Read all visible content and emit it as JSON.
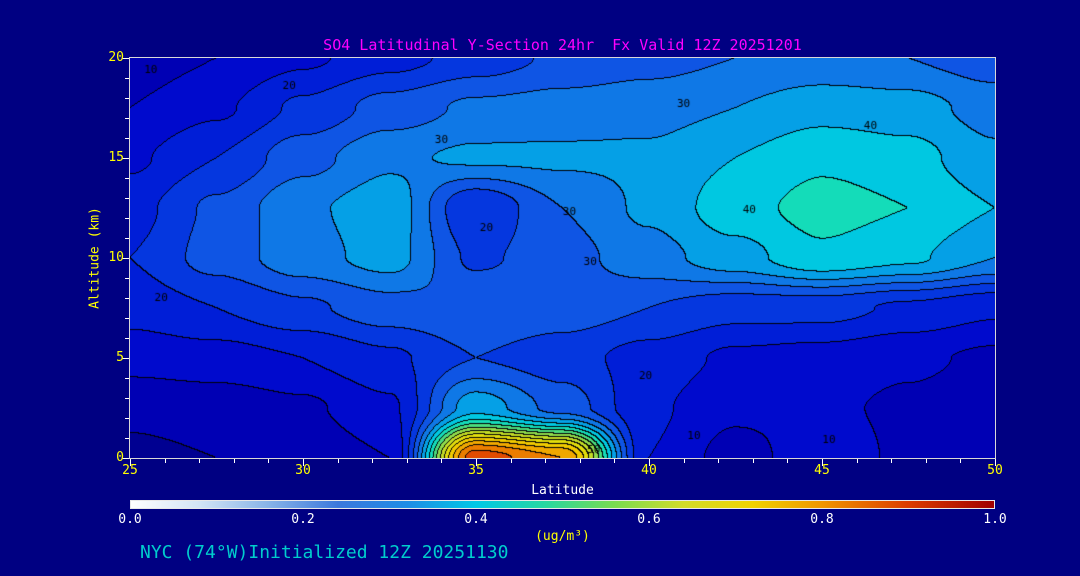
{
  "title": "SO4 Latitudinal Y-Section 24hr  Fx Valid 12Z 20251201",
  "footer": {
    "text": "NYC (74°W)Initialized 12Z 20251130"
  },
  "colors": {
    "background": "#000082",
    "title": "#ff00ff",
    "axis_tick_labels": "#ffff00",
    "axis_title": "#ffff00",
    "x_axis_title": "#ffffff",
    "colorbar_labels": "#ffffff",
    "units": "#ffff00",
    "footer": "#00cdcd",
    "frame": "#d8d8d8",
    "contour_line": "#000005"
  },
  "chart_data": {
    "type": "heatmap",
    "title": "SO4 Latitudinal Y-Section 24hr  Fx Valid 12Z 20251201",
    "xlabel": "Latitude",
    "ylabel": "Altitude (km)",
    "units": "(ug/m³)",
    "xlim": [
      25,
      50
    ],
    "ylim": [
      0,
      20
    ],
    "x_ticks": [
      25,
      30,
      35,
      40,
      45,
      50
    ],
    "y_ticks": [
      0,
      5,
      10,
      15,
      20
    ],
    "colorbar_ticks": [
      "0.0",
      "0.2",
      "0.4",
      "0.6",
      "0.8",
      "1.0"
    ],
    "colorbar_min": 0.0,
    "colorbar_max": 1.0,
    "contour_interval": 0.05,
    "grid_lats": [
      25,
      27.5,
      30,
      32.5,
      35,
      37.5,
      40,
      42.5,
      45,
      47.5,
      50
    ],
    "grid_alts": [
      0,
      2.5,
      5,
      7.5,
      10,
      12.5,
      15,
      17.5,
      20
    ],
    "values": [
      [
        0.04,
        0.05,
        0.06,
        0.1,
        0.88,
        0.8,
        0.15,
        0.08,
        0.13,
        0.09,
        0.06
      ],
      [
        0.06,
        0.07,
        0.09,
        0.14,
        0.38,
        0.28,
        0.16,
        0.11,
        0.11,
        0.09,
        0.07
      ],
      [
        0.12,
        0.13,
        0.15,
        0.19,
        0.25,
        0.22,
        0.18,
        0.14,
        0.13,
        0.11,
        0.09
      ],
      [
        0.17,
        0.2,
        0.24,
        0.28,
        0.3,
        0.28,
        0.25,
        0.22,
        0.22,
        0.19,
        0.16
      ],
      [
        0.2,
        0.27,
        0.33,
        0.37,
        0.24,
        0.28,
        0.33,
        0.38,
        0.44,
        0.41,
        0.35
      ],
      [
        0.18,
        0.26,
        0.34,
        0.38,
        0.2,
        0.3,
        0.36,
        0.43,
        0.47,
        0.45,
        0.4
      ],
      [
        0.14,
        0.2,
        0.28,
        0.34,
        0.36,
        0.36,
        0.36,
        0.4,
        0.44,
        0.42,
        0.36
      ],
      [
        0.1,
        0.14,
        0.21,
        0.27,
        0.31,
        0.32,
        0.33,
        0.35,
        0.38,
        0.37,
        0.33
      ],
      [
        0.07,
        0.1,
        0.14,
        0.18,
        0.22,
        0.26,
        0.28,
        0.3,
        0.31,
        0.3,
        0.27
      ]
    ],
    "contour_labels": [
      {
        "text": "10",
        "lat": 25.6,
        "alt": 19.4
      },
      {
        "text": "20",
        "lat": 29.6,
        "alt": 18.6
      },
      {
        "text": "30",
        "lat": 34.0,
        "alt": 15.9
      },
      {
        "text": "30",
        "lat": 41.0,
        "alt": 17.7
      },
      {
        "text": "40",
        "lat": 46.4,
        "alt": 16.6
      },
      {
        "text": "40",
        "lat": 42.9,
        "alt": 12.4
      },
      {
        "text": "30",
        "lat": 37.7,
        "alt": 12.3
      },
      {
        "text": "20",
        "lat": 35.3,
        "alt": 11.5
      },
      {
        "text": "30",
        "lat": 38.3,
        "alt": 9.8
      },
      {
        "text": "20",
        "lat": 25.9,
        "alt": 8.0
      },
      {
        "text": "20",
        "lat": 39.9,
        "alt": 4.1
      },
      {
        "text": "10",
        "lat": 41.3,
        "alt": 1.1
      },
      {
        "text": "10",
        "lat": 45.2,
        "alt": 0.9
      },
      {
        "text": "50",
        "lat": 38.4,
        "alt": 0.4
      }
    ],
    "fill_stops": [
      [
        0.0,
        "#000082"
      ],
      [
        0.05,
        "#0000a0"
      ],
      [
        0.1,
        "#0000c8"
      ],
      [
        0.2,
        "#0028dc"
      ],
      [
        0.3,
        "#1464e6"
      ],
      [
        0.4,
        "#00b4e6"
      ],
      [
        0.45,
        "#00dcdc"
      ],
      [
        0.5,
        "#28dc96"
      ],
      [
        0.6,
        "#b4dc32"
      ],
      [
        0.7,
        "#f0dc00"
      ],
      [
        0.8,
        "#f09600"
      ],
      [
        0.9,
        "#dc3200"
      ],
      [
        1.0,
        "#960000"
      ]
    ],
    "colorbar_stops": [
      [
        0.0,
        "#ffffff"
      ],
      [
        0.08,
        "#d2e4f5"
      ],
      [
        0.16,
        "#87b3e8"
      ],
      [
        0.24,
        "#3c78dc"
      ],
      [
        0.32,
        "#1e8ce6"
      ],
      [
        0.4,
        "#00c8e6"
      ],
      [
        0.48,
        "#28d7a0"
      ],
      [
        0.56,
        "#78dc50"
      ],
      [
        0.64,
        "#d2dc28"
      ],
      [
        0.72,
        "#f0d200"
      ],
      [
        0.8,
        "#f09600"
      ],
      [
        0.9,
        "#dc3c00"
      ],
      [
        1.0,
        "#a00000"
      ]
    ]
  }
}
